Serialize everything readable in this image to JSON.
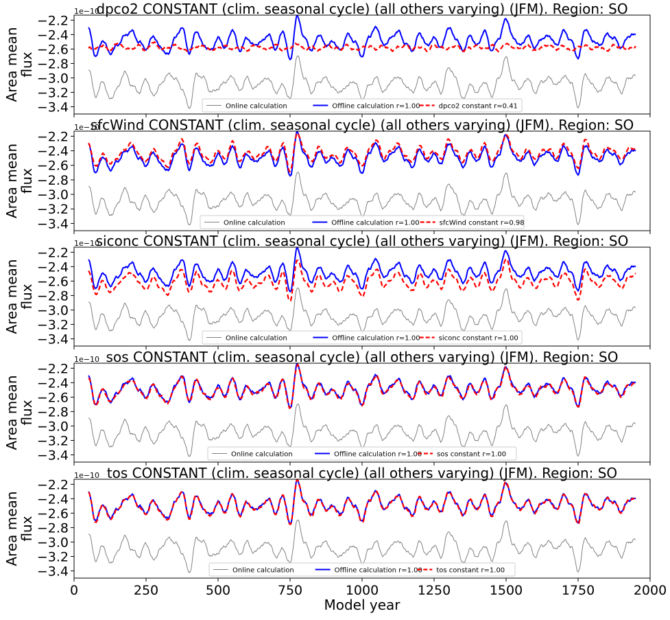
{
  "chart_data": {
    "type": "line",
    "xlabel": "Model year",
    "ylabel": "Area mean flux",
    "x_range": [
      0,
      2000
    ],
    "x_ticks": [
      0,
      250,
      500,
      750,
      1000,
      1250,
      1500,
      1750,
      2000
    ],
    "y_range": [
      -3.5,
      -2.13
    ],
    "y_ticks": [
      -2.2,
      -2.4,
      -2.6,
      -2.8,
      -3.0,
      -3.2,
      -3.4
    ],
    "y_tick_labels": [
      "−2.2",
      "−2.4",
      "−2.6",
      "−2.8",
      "−3.0",
      "−3.2",
      "−3.4"
    ],
    "offset_label": "1e−10",
    "grid": false,
    "legend_placement": "lower center",
    "colors": {
      "online": "#808080",
      "offline": "#0000ff",
      "constant": "#ff0000"
    },
    "shared_series": {
      "x": [
        50,
        75,
        100,
        125,
        150,
        175,
        200,
        225,
        250,
        275,
        300,
        325,
        350,
        375,
        400,
        425,
        450,
        475,
        500,
        525,
        550,
        575,
        600,
        625,
        650,
        675,
        700,
        725,
        750,
        775,
        800,
        825,
        850,
        875,
        900,
        925,
        950,
        975,
        1000,
        1025,
        1050,
        1075,
        1100,
        1125,
        1150,
        1175,
        1200,
        1225,
        1250,
        1275,
        1300,
        1325,
        1350,
        1375,
        1400,
        1425,
        1450,
        1475,
        1500,
        1525,
        1550,
        1575,
        1600,
        1625,
        1650,
        1675,
        1700,
        1725,
        1750,
        1775,
        1800,
        1825,
        1850,
        1875,
        1900,
        1925,
        1950
      ],
      "online": [
        -2.87,
        -3.25,
        -3.05,
        -3.3,
        -3.15,
        -2.92,
        -3.1,
        -3.2,
        -3.02,
        -3.25,
        -3.1,
        -2.95,
        -3.0,
        -3.15,
        -3.42,
        -2.95,
        -3.0,
        -3.2,
        -3.15,
        -3.05,
        -2.98,
        -3.18,
        -3.0,
        -3.15,
        -3.05,
        -3.0,
        -3.2,
        -3.1,
        -3.3,
        -2.7,
        -3.0,
        -3.2,
        -3.05,
        -3.0,
        -3.15,
        -3.2,
        -3.1,
        -3.05,
        -3.3,
        -3.1,
        -3.0,
        -3.2,
        -3.05,
        -2.98,
        -3.1,
        -3.2,
        -3.0,
        -3.18,
        -3.05,
        -3.2,
        -2.85,
        -3.0,
        -3.3,
        -3.1,
        -3.2,
        -3.05,
        -3.25,
        -3.0,
        -2.72,
        -3.05,
        -3.15,
        -3.0,
        -3.2,
        -3.05,
        -3.0,
        -3.1,
        -2.98,
        -3.05,
        -3.4,
        -2.95,
        -3.1,
        -3.2,
        -3.0,
        -3.05,
        -3.2,
        -3.0,
        -2.97
      ],
      "offline": [
        -2.32,
        -2.7,
        -2.48,
        -2.66,
        -2.55,
        -2.42,
        -2.35,
        -2.5,
        -2.6,
        -2.42,
        -2.58,
        -2.68,
        -2.45,
        -2.3,
        -2.65,
        -2.35,
        -2.55,
        -2.62,
        -2.45,
        -2.58,
        -2.33,
        -2.62,
        -2.45,
        -2.55,
        -2.5,
        -2.4,
        -2.6,
        -2.35,
        -2.75,
        -2.15,
        -2.45,
        -2.62,
        -2.4,
        -2.55,
        -2.5,
        -2.62,
        -2.4,
        -2.5,
        -2.7,
        -2.42,
        -2.3,
        -2.55,
        -2.45,
        -2.35,
        -2.52,
        -2.62,
        -2.38,
        -2.55,
        -2.45,
        -2.58,
        -2.3,
        -2.45,
        -2.62,
        -2.42,
        -2.55,
        -2.35,
        -2.62,
        -2.45,
        -2.18,
        -2.45,
        -2.55,
        -2.42,
        -2.58,
        -2.45,
        -2.42,
        -2.55,
        -2.35,
        -2.48,
        -2.72,
        -2.32,
        -2.48,
        -2.55,
        -2.4,
        -2.45,
        -2.58,
        -2.42,
        -2.4
      ]
    },
    "panels": [
      {
        "title": "dpco2 CONSTANT (clim. seasonal cycle) (all others varying) (JFM). Region: SO",
        "legend": [
          "Online calculation",
          "Offline calculation r=1.00",
          "dpco2 constant r=0.41"
        ],
        "constant": [
          -2.58,
          -2.6,
          -2.55,
          -2.62,
          -2.52,
          -2.58,
          -2.6,
          -2.55,
          -2.62,
          -2.5,
          -2.6,
          -2.58,
          -2.55,
          -2.6,
          -2.62,
          -2.57,
          -2.55,
          -2.62,
          -2.58,
          -2.56,
          -2.6,
          -2.57,
          -2.62,
          -2.55,
          -2.58,
          -2.6,
          -2.54,
          -2.62,
          -2.58,
          -2.53,
          -2.6,
          -2.57,
          -2.62,
          -2.55,
          -2.58,
          -2.6,
          -2.55,
          -2.62,
          -2.58,
          -2.56,
          -2.6,
          -2.55,
          -2.62,
          -2.58,
          -2.55,
          -2.6,
          -2.57,
          -2.62,
          -2.55,
          -2.58,
          -2.6,
          -2.55,
          -2.62,
          -2.58,
          -2.56,
          -2.6,
          -2.55,
          -2.62,
          -2.52,
          -2.58,
          -2.6,
          -2.55,
          -2.62,
          -2.57,
          -2.55,
          -2.6,
          -2.56,
          -2.62,
          -2.58,
          -2.55,
          -2.6,
          -2.57,
          -2.62,
          -2.55,
          -2.58,
          -2.6,
          -2.56
        ]
      },
      {
        "title": "sfcWind CONSTANT (clim. seasonal cycle) (all others varying) (JFM). Region: SO",
        "legend": [
          "Online calculation",
          "Offline calculation r=1.00",
          "sfcWind constant r=0.98"
        ],
        "constant": [
          -2.3,
          -2.62,
          -2.45,
          -2.58,
          -2.5,
          -2.38,
          -2.3,
          -2.45,
          -2.55,
          -2.38,
          -2.52,
          -2.62,
          -2.4,
          -2.25,
          -2.58,
          -2.3,
          -2.48,
          -2.55,
          -2.4,
          -2.52,
          -2.28,
          -2.55,
          -2.4,
          -2.5,
          -2.45,
          -2.35,
          -2.55,
          -2.3,
          -2.68,
          -2.15,
          -2.4,
          -2.55,
          -2.35,
          -2.5,
          -2.45,
          -2.55,
          -2.35,
          -2.45,
          -2.62,
          -2.38,
          -2.25,
          -2.5,
          -2.4,
          -2.3,
          -2.48,
          -2.55,
          -2.33,
          -2.5,
          -2.4,
          -2.52,
          -2.25,
          -2.4,
          -2.55,
          -2.38,
          -2.5,
          -2.3,
          -2.55,
          -2.4,
          -2.18,
          -2.4,
          -2.5,
          -2.38,
          -2.52,
          -2.4,
          -2.38,
          -2.5,
          -2.3,
          -2.43,
          -2.65,
          -2.25,
          -2.43,
          -2.5,
          -2.35,
          -2.4,
          -2.52,
          -2.38,
          -2.36
        ]
      },
      {
        "title": "siconc CONSTANT (clim. seasonal cycle) (all others varying) (JFM). Region: SO",
        "legend": [
          "Online calculation",
          "Offline calculation r=1.00",
          "siconc constant r=1.00"
        ],
        "constant": [
          -2.45,
          -2.78,
          -2.6,
          -2.76,
          -2.66,
          -2.54,
          -2.48,
          -2.62,
          -2.72,
          -2.55,
          -2.7,
          -2.78,
          -2.58,
          -2.44,
          -2.76,
          -2.48,
          -2.66,
          -2.74,
          -2.58,
          -2.7,
          -2.46,
          -2.74,
          -2.58,
          -2.68,
          -2.62,
          -2.52,
          -2.72,
          -2.48,
          -2.88,
          -2.3,
          -2.58,
          -2.74,
          -2.52,
          -2.68,
          -2.62,
          -2.74,
          -2.52,
          -2.62,
          -2.82,
          -2.55,
          -2.44,
          -2.68,
          -2.58,
          -2.48,
          -2.64,
          -2.74,
          -2.5,
          -2.68,
          -2.58,
          -2.7,
          -2.44,
          -2.58,
          -2.74,
          -2.55,
          -2.68,
          -2.48,
          -2.74,
          -2.58,
          -2.3,
          -2.58,
          -2.68,
          -2.55,
          -2.7,
          -2.58,
          -2.55,
          -2.68,
          -2.48,
          -2.6,
          -2.86,
          -2.44,
          -2.6,
          -2.68,
          -2.52,
          -2.58,
          -2.7,
          -2.55,
          -2.5
        ]
      },
      {
        "title": "sos CONSTANT (clim. seasonal cycle) (all others varying) (JFM). Region: SO",
        "legend": [
          "Online calculation",
          "Offline calculation r=1.00",
          "sos constant r=1.00"
        ],
        "constant": [
          -2.33,
          -2.71,
          -2.49,
          -2.67,
          -2.56,
          -2.43,
          -2.36,
          -2.51,
          -2.61,
          -2.43,
          -2.59,
          -2.69,
          -2.46,
          -2.31,
          -2.66,
          -2.36,
          -2.56,
          -2.63,
          -2.46,
          -2.59,
          -2.34,
          -2.63,
          -2.46,
          -2.56,
          -2.51,
          -2.41,
          -2.61,
          -2.36,
          -2.76,
          -2.16,
          -2.46,
          -2.63,
          -2.41,
          -2.56,
          -2.51,
          -2.63,
          -2.41,
          -2.51,
          -2.71,
          -2.43,
          -2.31,
          -2.56,
          -2.46,
          -2.36,
          -2.53,
          -2.63,
          -2.39,
          -2.56,
          -2.46,
          -2.59,
          -2.31,
          -2.46,
          -2.63,
          -2.43,
          -2.56,
          -2.36,
          -2.63,
          -2.46,
          -2.19,
          -2.46,
          -2.56,
          -2.43,
          -2.59,
          -2.46,
          -2.43,
          -2.56,
          -2.36,
          -2.49,
          -2.73,
          -2.33,
          -2.49,
          -2.56,
          -2.41,
          -2.46,
          -2.59,
          -2.43,
          -2.41
        ]
      },
      {
        "title": "tos CONSTANT (clim. seasonal cycle) (all others varying) (JFM). Region: SO",
        "legend": [
          "Online calculation",
          "Offline calculation r=1.00",
          "tos constant r=1.00"
        ],
        "constant": [
          -2.32,
          -2.72,
          -2.48,
          -2.68,
          -2.56,
          -2.42,
          -2.35,
          -2.52,
          -2.61,
          -2.42,
          -2.59,
          -2.7,
          -2.45,
          -2.3,
          -2.67,
          -2.35,
          -2.56,
          -2.64,
          -2.45,
          -2.59,
          -2.33,
          -2.64,
          -2.45,
          -2.56,
          -2.51,
          -2.4,
          -2.61,
          -2.35,
          -2.77,
          -2.15,
          -2.45,
          -2.64,
          -2.4,
          -2.56,
          -2.51,
          -2.64,
          -2.4,
          -2.51,
          -2.72,
          -2.42,
          -2.3,
          -2.56,
          -2.45,
          -2.35,
          -2.53,
          -2.64,
          -2.38,
          -2.56,
          -2.45,
          -2.59,
          -2.3,
          -2.45,
          -2.64,
          -2.42,
          -2.56,
          -2.35,
          -2.64,
          -2.45,
          -2.17,
          -2.45,
          -2.56,
          -2.42,
          -2.59,
          -2.45,
          -2.42,
          -2.56,
          -2.35,
          -2.48,
          -2.74,
          -2.32,
          -2.48,
          -2.56,
          -2.4,
          -2.45,
          -2.59,
          -2.42,
          -2.4
        ]
      }
    ]
  }
}
